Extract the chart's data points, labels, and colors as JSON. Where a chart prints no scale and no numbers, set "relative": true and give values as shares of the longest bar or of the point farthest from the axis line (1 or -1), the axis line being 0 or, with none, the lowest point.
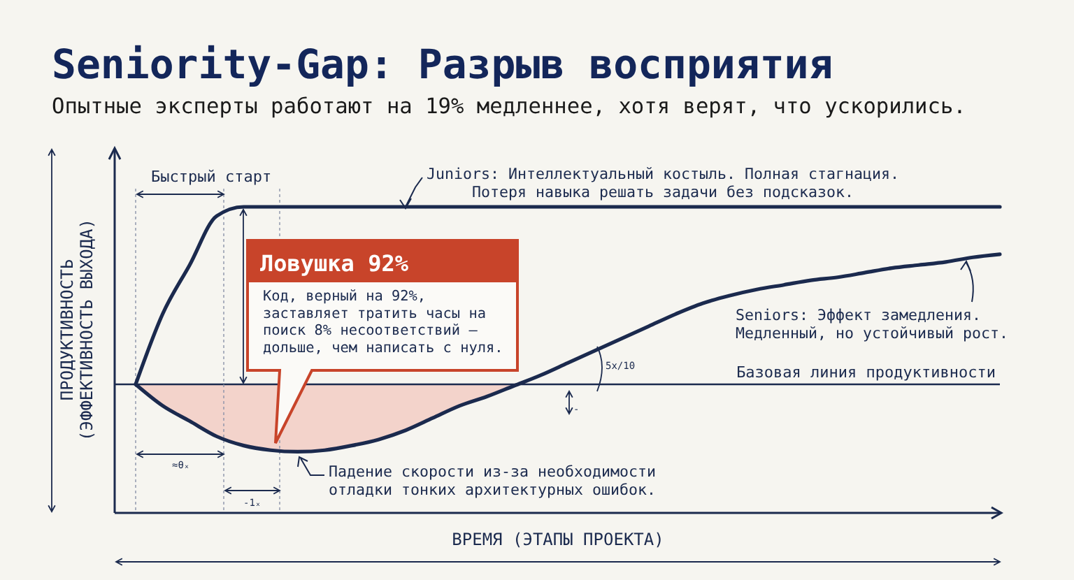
{
  "chart_data": {
    "type": "line",
    "relative": true,
    "title": "Seniority-Gap: Разрыв восприятия",
    "subtitle": "Опытные эксперты работают на 19% медленнее, хотя верят, что ускорились.",
    "xlabel": "ВРЕМЯ (ЭТАПЫ ПРОЕКТА)",
    "ylabel": "ПРОДУКТИВНОСТЬ\n(ЭФФЕКТИВНОСТЬ ВЫХОДА)",
    "categories": [
      null,
      null,
      null,
      null,
      null,
      null,
      null,
      null,
      null,
      null,
      null,
      null,
      null,
      null,
      null,
      null,
      null,
      null,
      null,
      null,
      null,
      null,
      null,
      null,
      null,
      null,
      null,
      null,
      null,
      null,
      null,
      null,
      null
    ],
    "series": [
      {
        "type": "area",
        "color": "#f3d3cb",
        "values": [
          0.42,
          0.35,
          0.3,
          0.25,
          0.22,
          0.205,
          0.2,
          0.205,
          0.22,
          0.24,
          0.27,
          0.31,
          0.35,
          0.38,
          0.415,
          null,
          null,
          null,
          null,
          null,
          null,
          null,
          null,
          null,
          null,
          null,
          null,
          null,
          null,
          null,
          null,
          null,
          null
        ]
      },
      {
        "color": "#1b2a4e",
        "values": [
          0.42,
          0.65,
          0.81,
          0.97,
          1,
          1,
          1,
          1,
          1,
          1,
          1,
          1,
          1,
          1,
          1,
          1,
          1,
          1,
          1,
          1,
          1,
          1,
          1,
          1,
          1,
          1,
          1,
          1,
          1,
          1,
          1,
          1,
          1
        ]
      },
      {
        "color": "#1b2a4e",
        "values": [
          0.42,
          0.35,
          0.3,
          0.25,
          0.22,
          0.205,
          0.2,
          0.205,
          0.22,
          0.24,
          0.27,
          0.31,
          0.35,
          0.38,
          0.415,
          0.45,
          0.49,
          0.53,
          0.57,
          0.61,
          0.65,
          0.685,
          0.71,
          0.73,
          0.745,
          0.76,
          0.77,
          0.785,
          0.8,
          0.81,
          0.82,
          0.835,
          0.845
        ]
      }
    ],
    "ref_lines": [
      {
        "axis": "y",
        "value": 0.42,
        "label": "Базовая линия продуктивности",
        "color": "#1b2a4e"
      }
    ],
    "annotations": [
      "Быстрый старт",
      "Juniors: Интеллектуальный костыль. Полная стагнация.\nПотеря навыка решать задачи без подсказок.",
      "Ловушка 92%",
      "Код, верный на 92%,\nзаставляет тратить часы на\nпоиск 8% несоответствий —\nдольше, чем написать с нуля.",
      "Seniors: Эффект замедления.\nМедленный, но устойчивый рост.",
      "Падение скорости из-за необходимости\nотладки тонких архитектурных ошибок.",
      "≈θₓ",
      "-1ₓ",
      "5x/10",
      "-"
    ]
  }
}
